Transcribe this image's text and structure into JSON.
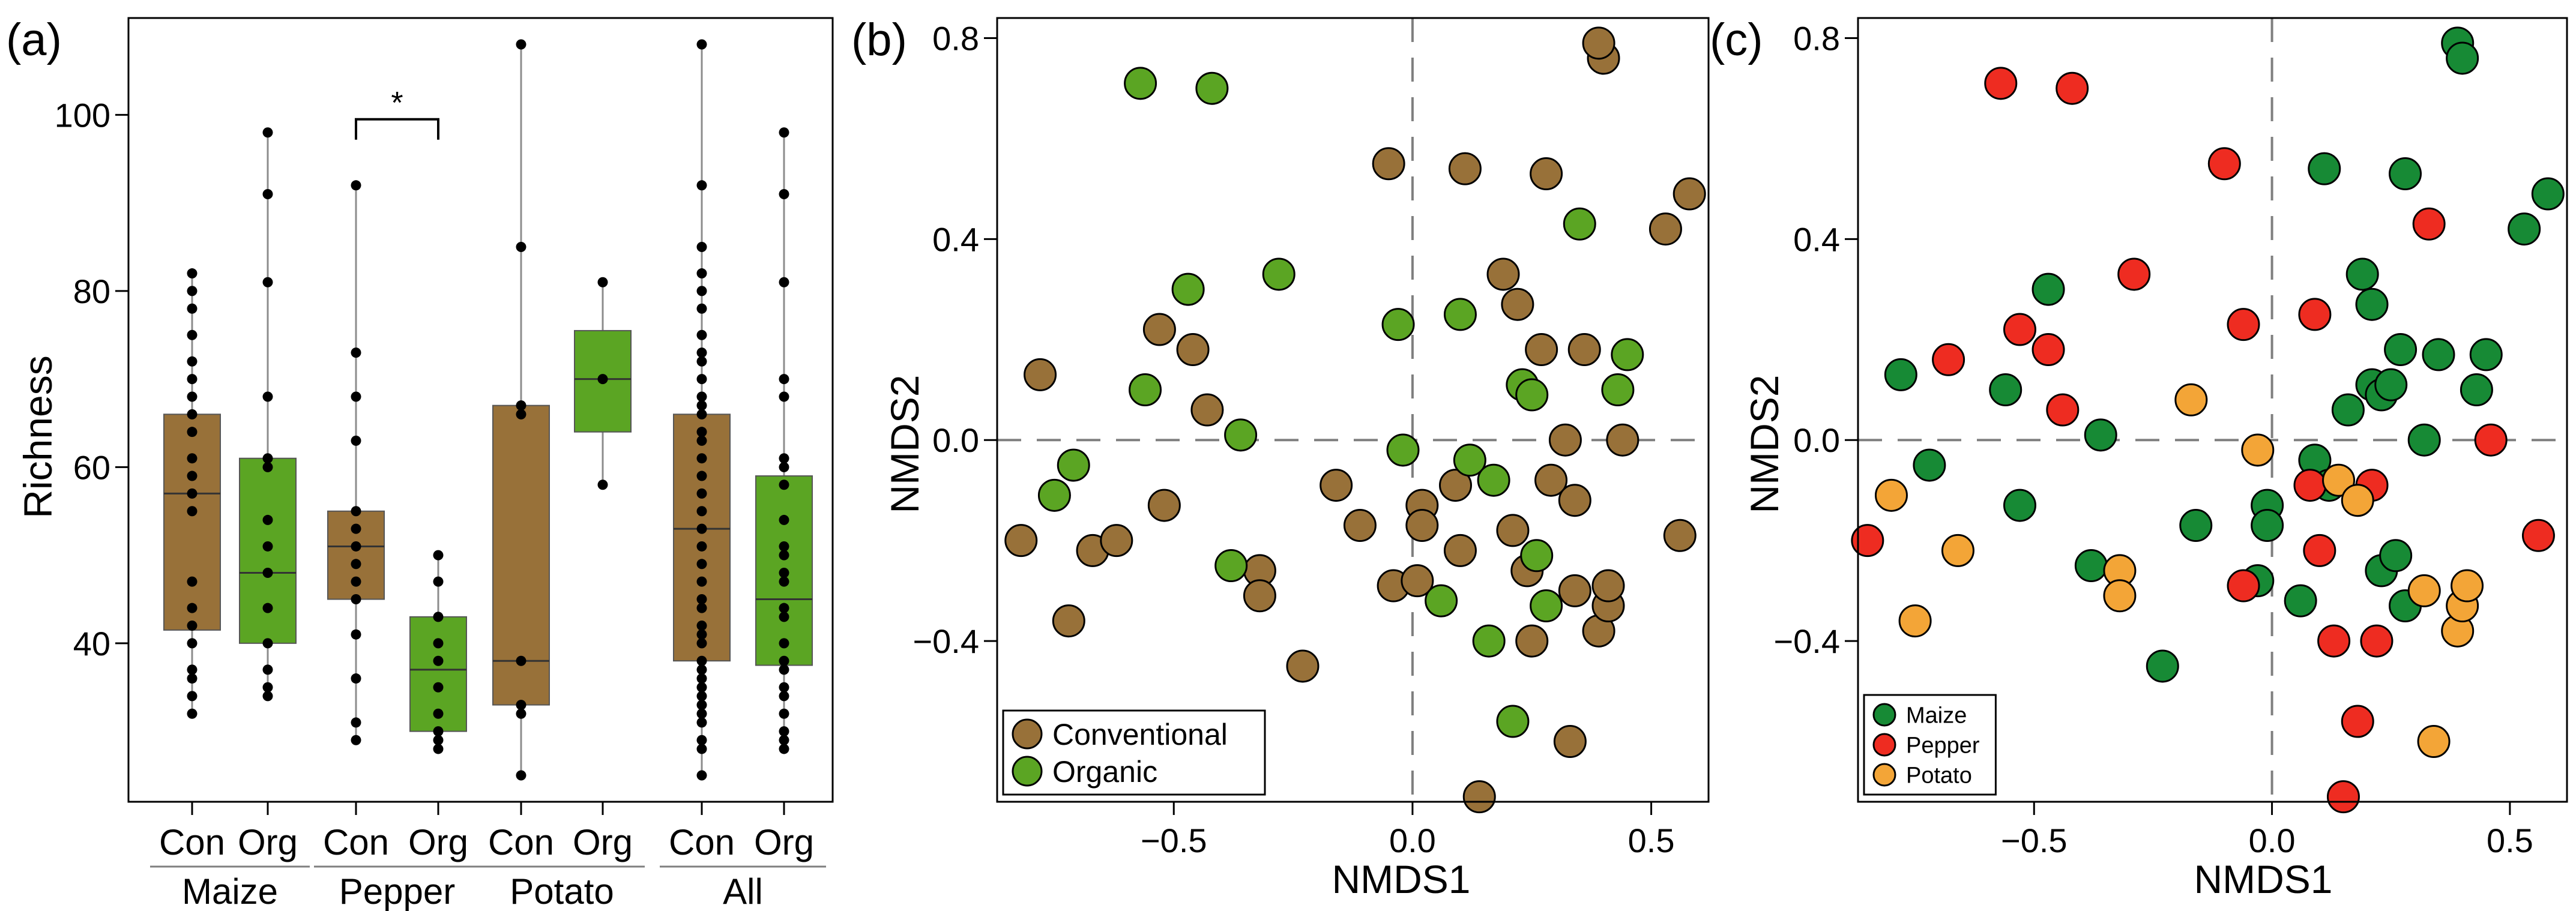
{
  "colors": {
    "conventional": "#987139",
    "organic": "#5ba523",
    "maize": "#178a35",
    "pepper": "#ee2c21",
    "potato": "#f3a537",
    "dashed": "#7f7f7f"
  },
  "chart_data": [
    {
      "type": "box",
      "panel_label": "(a)",
      "ylabel": "Richness",
      "ylim": [
        22,
        111
      ],
      "yticks": [
        40,
        60,
        80,
        100
      ],
      "groups": [
        "Maize",
        "Pepper",
        "Potato",
        "All"
      ],
      "treatments": [
        "Con",
        "Org"
      ],
      "significance": {
        "group": "Pepper",
        "label": "*"
      },
      "boxes": [
        {
          "group": "Maize",
          "treatment": "Con",
          "q1": 41.5,
          "median": 57,
          "q3": 66,
          "whisker_low": 32,
          "whisker_high": 82,
          "points": [
            32,
            34,
            36,
            37,
            40,
            42,
            44,
            47,
            55,
            57,
            59,
            61,
            64,
            66,
            68,
            70,
            72,
            75,
            78,
            80,
            82
          ]
        },
        {
          "group": "Maize",
          "treatment": "Org",
          "q1": 40,
          "median": 48,
          "q3": 61,
          "whisker_low": 34,
          "whisker_high": 98,
          "points": [
            34,
            35,
            37,
            40,
            44,
            48,
            51,
            54,
            60,
            61,
            68,
            81,
            91,
            98
          ]
        },
        {
          "group": "Pepper",
          "treatment": "Con",
          "q1": 45,
          "median": 51,
          "q3": 55,
          "whisker_low": 29,
          "whisker_high": 92,
          "points": [
            29,
            31,
            36,
            41,
            45,
            47,
            49,
            51,
            53,
            55,
            63,
            68,
            73,
            92
          ]
        },
        {
          "group": "Pepper",
          "treatment": "Org",
          "q1": 30,
          "median": 37,
          "q3": 43,
          "whisker_low": 28,
          "whisker_high": 50,
          "points": [
            28,
            29,
            30,
            32,
            35,
            38,
            40,
            43,
            47,
            50
          ]
        },
        {
          "group": "Potato",
          "treatment": "Con",
          "q1": 33,
          "median": 38,
          "q3": 67,
          "whisker_low": 25,
          "whisker_high": 108,
          "points": [
            25,
            32,
            33,
            38,
            66,
            67,
            85,
            108
          ]
        },
        {
          "group": "Potato",
          "treatment": "Org",
          "q1": 64,
          "median": 70,
          "q3": 75.5,
          "whisker_low": 58,
          "whisker_high": 81,
          "points": [
            58,
            70,
            81
          ]
        },
        {
          "group": "All",
          "treatment": "Con",
          "q1": 38,
          "median": 53,
          "q3": 66,
          "whisker_low": 25,
          "whisker_high": 108,
          "points": [
            25,
            28,
            29,
            31,
            32,
            33,
            34,
            35,
            36,
            37,
            38,
            40,
            41,
            42,
            44,
            45,
            47,
            49,
            51,
            53,
            55,
            57,
            59,
            61,
            63,
            64,
            66,
            67,
            68,
            70,
            72,
            73,
            75,
            78,
            80,
            82,
            85,
            92,
            108
          ]
        },
        {
          "group": "All",
          "treatment": "Org",
          "q1": 37.5,
          "median": 45,
          "q3": 59,
          "whisker_low": 28,
          "whisker_high": 98,
          "points": [
            28,
            29,
            30,
            32,
            34,
            35,
            37,
            38,
            40,
            43,
            44,
            47,
            48,
            50,
            51,
            54,
            58,
            60,
            61,
            68,
            70,
            81,
            91,
            98
          ]
        }
      ]
    },
    {
      "type": "scatter",
      "panel_label": "(b)",
      "xlabel": "NMDS1",
      "ylabel": "NMDS2",
      "xlim": [
        -0.87,
        0.62
      ],
      "ylim": [
        -0.72,
        0.84
      ],
      "xticks": [
        -0.5,
        0.0,
        0.5
      ],
      "yticks": [
        -0.4,
        0.0,
        0.4,
        0.8
      ],
      "legend": {
        "position": "bottom-left",
        "entries": [
          "Conventional",
          "Organic"
        ]
      },
      "series": [
        {
          "name": "Conventional",
          "color_key": "conventional",
          "points": [
            [
              -0.82,
              -0.2
            ],
            [
              -0.78,
              0.13
            ],
            [
              -0.72,
              -0.36
            ],
            [
              -0.67,
              -0.22
            ],
            [
              -0.62,
              -0.2
            ],
            [
              -0.52,
              -0.13
            ],
            [
              -0.53,
              0.22
            ],
            [
              -0.46,
              0.18
            ],
            [
              -0.43,
              0.06
            ],
            [
              -0.32,
              -0.26
            ],
            [
              -0.32,
              -0.31
            ],
            [
              -0.23,
              -0.45
            ],
            [
              -0.16,
              -0.09
            ],
            [
              -0.05,
              0.55
            ],
            [
              -0.04,
              -0.29
            ],
            [
              -0.11,
              -0.17
            ],
            [
              0.01,
              -0.28
            ],
            [
              0.02,
              -0.13
            ],
            [
              0.02,
              -0.17
            ],
            [
              0.09,
              -0.09
            ],
            [
              0.1,
              -0.22
            ],
            [
              0.11,
              0.54
            ],
            [
              0.14,
              -0.71
            ],
            [
              0.19,
              0.33
            ],
            [
              0.21,
              -0.18
            ],
            [
              0.22,
              0.27
            ],
            [
              0.24,
              -0.26
            ],
            [
              0.25,
              -0.4
            ],
            [
              0.27,
              0.18
            ],
            [
              0.28,
              0.53
            ],
            [
              0.29,
              -0.08
            ],
            [
              0.32,
              0.0
            ],
            [
              0.33,
              -0.6
            ],
            [
              0.34,
              -0.12
            ],
            [
              0.34,
              -0.3
            ],
            [
              0.36,
              0.18
            ],
            [
              0.39,
              -0.38
            ],
            [
              0.41,
              -0.33
            ],
            [
              0.41,
              -0.29
            ],
            [
              0.4,
              0.76
            ],
            [
              0.39,
              0.79
            ],
            [
              0.44,
              0.0
            ],
            [
              0.53,
              0.42
            ],
            [
              0.56,
              -0.19
            ],
            [
              0.58,
              0.49
            ]
          ]
        },
        {
          "name": "Organic",
          "color_key": "organic",
          "points": [
            [
              -0.75,
              -0.11
            ],
            [
              -0.71,
              -0.05
            ],
            [
              -0.57,
              0.71
            ],
            [
              -0.56,
              0.1
            ],
            [
              -0.47,
              0.3
            ],
            [
              -0.42,
              0.7
            ],
            [
              -0.38,
              -0.25
            ],
            [
              -0.36,
              0.01
            ],
            [
              -0.28,
              0.33
            ],
            [
              -0.03,
              0.23
            ],
            [
              -0.02,
              -0.02
            ],
            [
              0.06,
              -0.32
            ],
            [
              0.1,
              0.25
            ],
            [
              0.12,
              -0.04
            ],
            [
              0.16,
              -0.4
            ],
            [
              0.17,
              -0.08
            ],
            [
              0.21,
              -0.56
            ],
            [
              0.23,
              0.11
            ],
            [
              0.25,
              0.09
            ],
            [
              0.26,
              -0.23
            ],
            [
              0.28,
              -0.33
            ],
            [
              0.35,
              0.43
            ],
            [
              0.43,
              0.1
            ],
            [
              0.45,
              0.17
            ]
          ]
        }
      ]
    },
    {
      "type": "scatter",
      "panel_label": "(c)",
      "xlabel": "NMDS1",
      "ylabel": "NMDS2",
      "xlim": [
        -0.87,
        0.62
      ],
      "ylim": [
        -0.72,
        0.84
      ],
      "xticks": [
        -0.5,
        0.0,
        0.5
      ],
      "yticks": [
        -0.4,
        0.0,
        0.4,
        0.8
      ],
      "legend": {
        "position": "bottom-left",
        "entries": [
          "Maize",
          "Pepper",
          "Potato"
        ]
      },
      "series": [
        {
          "name": "Maize",
          "color_key": "maize",
          "points": [
            [
              -0.78,
              0.13
            ],
            [
              -0.72,
              -0.05
            ],
            [
              -0.56,
              0.1
            ],
            [
              -0.53,
              -0.13
            ],
            [
              -0.47,
              0.3
            ],
            [
              -0.38,
              -0.25
            ],
            [
              -0.36,
              0.01
            ],
            [
              -0.23,
              -0.45
            ],
            [
              -0.16,
              -0.17
            ],
            [
              -0.03,
              -0.28
            ],
            [
              -0.01,
              -0.13
            ],
            [
              -0.01,
              -0.17
            ],
            [
              0.06,
              -0.32
            ],
            [
              0.11,
              0.54
            ],
            [
              0.09,
              -0.04
            ],
            [
              0.12,
              -0.09
            ],
            [
              0.16,
              0.06
            ],
            [
              0.19,
              0.33
            ],
            [
              0.21,
              0.27
            ],
            [
              0.21,
              0.11
            ],
            [
              0.23,
              0.09
            ],
            [
              0.23,
              -0.26
            ],
            [
              0.26,
              -0.23
            ],
            [
              0.27,
              0.18
            ],
            [
              0.25,
              0.11
            ],
            [
              0.28,
              -0.33
            ],
            [
              0.28,
              0.53
            ],
            [
              0.32,
              0.0
            ],
            [
              0.35,
              0.17
            ],
            [
              0.39,
              0.79
            ],
            [
              0.4,
              0.76
            ],
            [
              0.43,
              0.1
            ],
            [
              0.45,
              0.17
            ],
            [
              0.53,
              0.42
            ],
            [
              0.58,
              0.49
            ]
          ]
        },
        {
          "name": "Pepper",
          "color_key": "pepper",
          "points": [
            [
              -0.85,
              -0.2
            ],
            [
              -0.68,
              0.16
            ],
            [
              -0.57,
              0.71
            ],
            [
              -0.53,
              0.22
            ],
            [
              -0.47,
              0.18
            ],
            [
              -0.42,
              0.7
            ],
            [
              -0.44,
              0.06
            ],
            [
              -0.29,
              0.33
            ],
            [
              -0.1,
              0.55
            ],
            [
              -0.06,
              0.23
            ],
            [
              -0.06,
              -0.29
            ],
            [
              0.08,
              -0.09
            ],
            [
              0.09,
              0.25
            ],
            [
              0.1,
              -0.22
            ],
            [
              0.13,
              -0.4
            ],
            [
              0.15,
              -0.71
            ],
            [
              0.18,
              -0.56
            ],
            [
              0.21,
              -0.09
            ],
            [
              0.22,
              -0.4
            ],
            [
              0.33,
              0.43
            ],
            [
              0.46,
              0.0
            ],
            [
              0.56,
              -0.19
            ]
          ]
        },
        {
          "name": "Potato",
          "color_key": "potato",
          "points": [
            [
              -0.8,
              -0.11
            ],
            [
              -0.75,
              -0.36
            ],
            [
              -0.66,
              -0.22
            ],
            [
              -0.32,
              -0.26
            ],
            [
              -0.32,
              -0.31
            ],
            [
              -0.17,
              0.08
            ],
            [
              -0.03,
              -0.02
            ],
            [
              0.14,
              -0.08
            ],
            [
              0.18,
              -0.12
            ],
            [
              0.32,
              -0.3
            ],
            [
              0.34,
              -0.6
            ],
            [
              0.39,
              -0.38
            ],
            [
              0.4,
              -0.33
            ],
            [
              0.41,
              -0.29
            ]
          ]
        }
      ]
    }
  ]
}
